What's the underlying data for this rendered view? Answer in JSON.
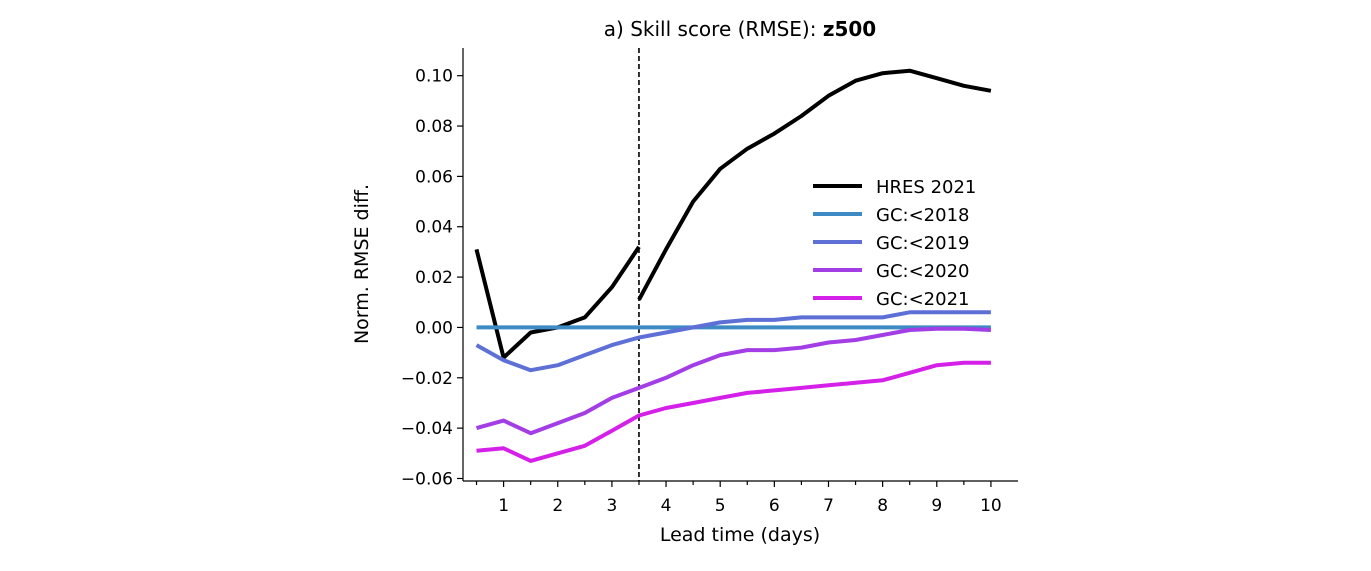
{
  "chart_data": {
    "type": "line",
    "title": "a) Skill score (RMSE): ",
    "title_bold": "z500",
    "xlabel": "Lead time (days)",
    "ylabel": "Norm. RMSE diff.",
    "xlim": [
      0.25,
      10.5
    ],
    "ylim": [
      -0.061,
      0.111
    ],
    "xticks": [
      1,
      2,
      3,
      4,
      5,
      6,
      7,
      8,
      9,
      10
    ],
    "yticks": [
      -0.06,
      -0.04,
      -0.02,
      0.0,
      0.02,
      0.04,
      0.06,
      0.08,
      0.1
    ],
    "ytick_labels": [
      "−0.06",
      "−0.04",
      "−0.02",
      "0.00",
      "0.02",
      "0.04",
      "0.06",
      "0.08",
      "0.10"
    ],
    "vline_x": 3.5,
    "legend_position": "center-right",
    "grid": false,
    "series": [
      {
        "name": "HRES 2021",
        "color": "#000000",
        "segments": [
          {
            "x": [
              0.5,
              1.0,
              1.5,
              2.0,
              2.5,
              3.0,
              3.5
            ],
            "y": [
              0.031,
              -0.012,
              -0.002,
              0.0,
              0.004,
              0.016,
              0.032
            ]
          },
          {
            "x": [
              3.5,
              4.0,
              4.5,
              5.0,
              5.5,
              6.0,
              6.5,
              7.0,
              7.5,
              8.0,
              8.5,
              9.0,
              9.5,
              10.0
            ],
            "y": [
              0.011,
              0.031,
              0.05,
              0.063,
              0.071,
              0.077,
              0.084,
              0.092,
              0.098,
              0.101,
              0.102,
              0.099,
              0.096,
              0.094
            ]
          }
        ]
      },
      {
        "name": "GC:<2018",
        "color": "#3d8ac4",
        "segments": [
          {
            "x": [
              0.5,
              10.0
            ],
            "y": [
              0.0,
              0.0
            ]
          }
        ]
      },
      {
        "name": "GC:<2019",
        "color": "#5e6fd6",
        "segments": [
          {
            "x": [
              0.5,
              1.0,
              1.5,
              2.0,
              2.5,
              3.0,
              3.5,
              4.0,
              4.5,
              5.0,
              5.5,
              6.0,
              6.5,
              7.0,
              7.5,
              8.0,
              8.5,
              9.0,
              9.5,
              10.0
            ],
            "y": [
              -0.007,
              -0.013,
              -0.017,
              -0.015,
              -0.011,
              -0.007,
              -0.004,
              -0.002,
              0.0,
              0.002,
              0.003,
              0.003,
              0.004,
              0.004,
              0.004,
              0.004,
              0.006,
              0.006,
              0.006,
              0.006
            ]
          }
        ]
      },
      {
        "name": "GC:<2020",
        "color": "#a33de6",
        "segments": [
          {
            "x": [
              0.5,
              1.0,
              1.5,
              2.0,
              2.5,
              3.0,
              3.5,
              4.0,
              4.5,
              5.0,
              5.5,
              6.0,
              6.5,
              7.0,
              7.5,
              8.0,
              8.5,
              9.0,
              9.5,
              10.0
            ],
            "y": [
              -0.04,
              -0.037,
              -0.042,
              -0.038,
              -0.034,
              -0.028,
              -0.024,
              -0.02,
              -0.015,
              -0.011,
              -0.009,
              -0.009,
              -0.008,
              -0.006,
              -0.005,
              -0.003,
              -0.001,
              -0.0005,
              -0.0005,
              -0.001
            ]
          }
        ]
      },
      {
        "name": "GC:<2021",
        "color": "#d420e8",
        "segments": [
          {
            "x": [
              0.5,
              1.0,
              1.5,
              2.0,
              2.5,
              3.0,
              3.5,
              4.0,
              4.5,
              5.0,
              5.5,
              6.0,
              6.5,
              7.0,
              7.5,
              8.0,
              8.5,
              9.0,
              9.5,
              10.0
            ],
            "y": [
              -0.049,
              -0.048,
              -0.053,
              -0.05,
              -0.047,
              -0.041,
              -0.035,
              -0.032,
              -0.03,
              -0.028,
              -0.026,
              -0.025,
              -0.024,
              -0.023,
              -0.022,
              -0.021,
              -0.018,
              -0.015,
              -0.014,
              -0.014
            ]
          }
        ]
      }
    ]
  }
}
